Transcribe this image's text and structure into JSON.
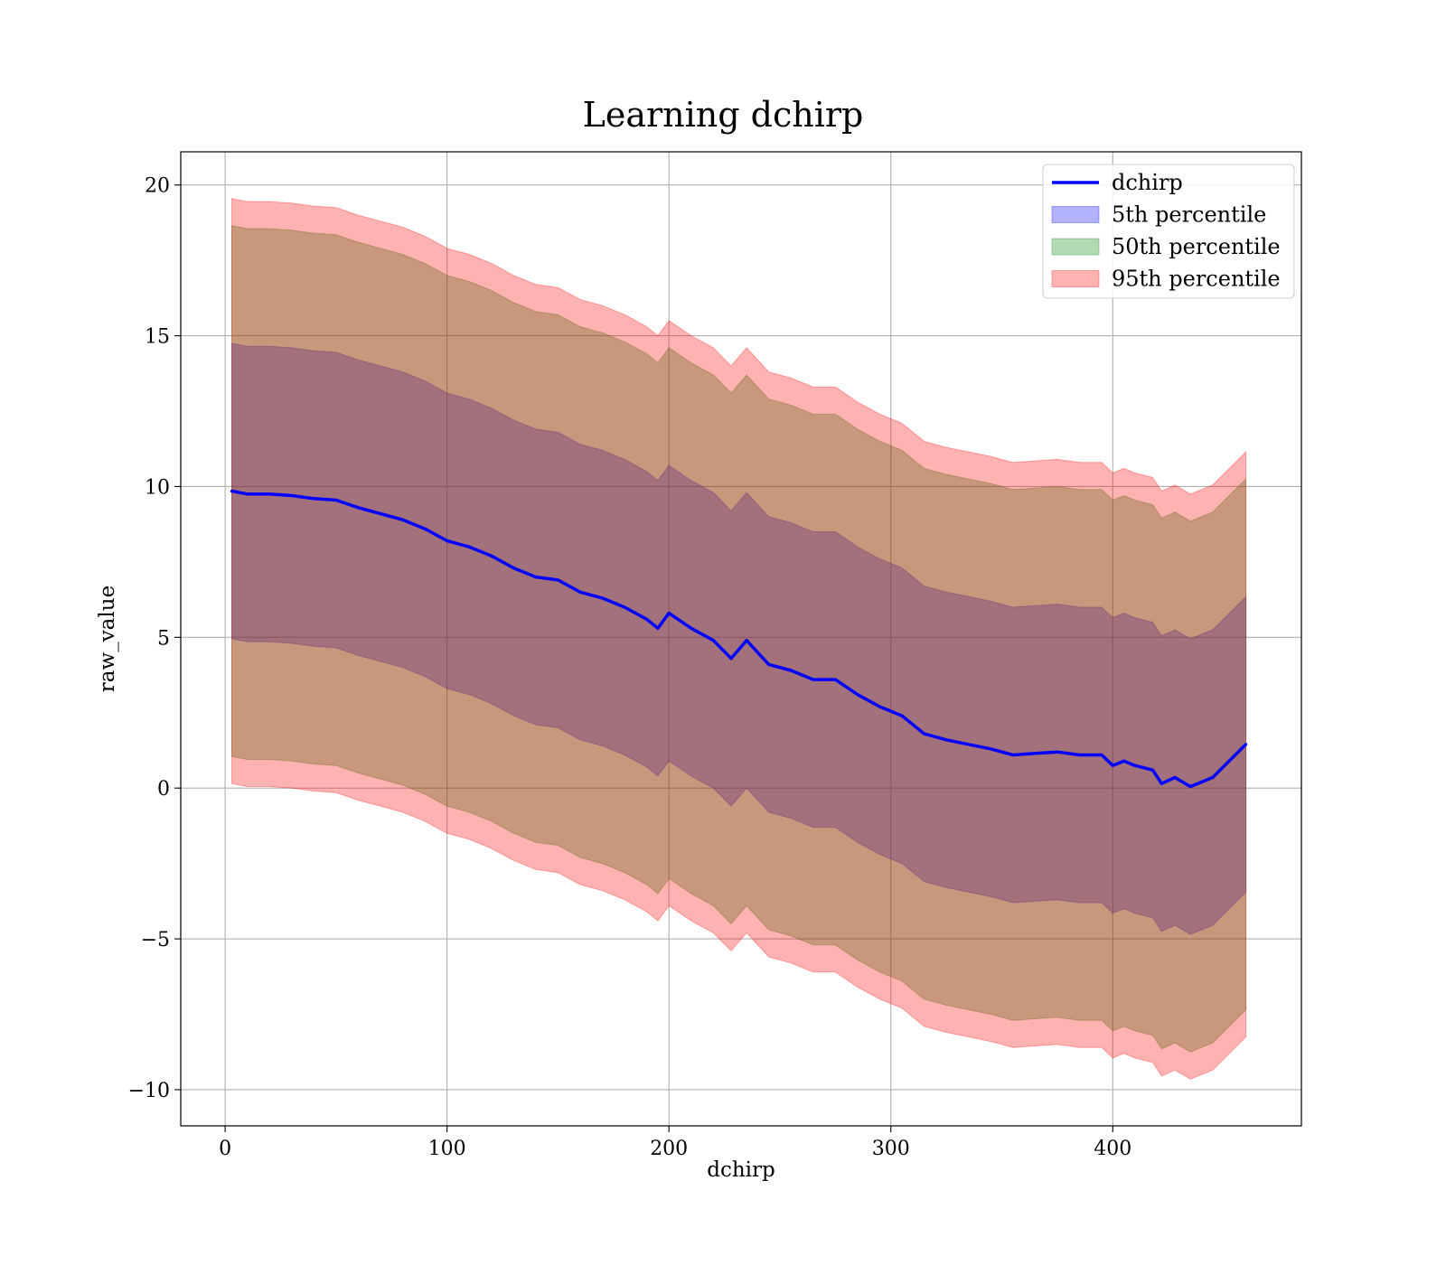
{
  "chart_data": {
    "type": "line",
    "title": "Learning dchirp",
    "xlabel": "dchirp",
    "ylabel": "raw_value",
    "xlim": [
      -20,
      485
    ],
    "ylim": [
      -11.2,
      21.1
    ],
    "x_ticks": [
      {
        "value": 0,
        "label": "0"
      },
      {
        "value": 100,
        "label": "100"
      },
      {
        "value": 200,
        "label": "200"
      },
      {
        "value": 300,
        "label": "300"
      },
      {
        "value": 400,
        "label": "400"
      }
    ],
    "y_ticks": [
      {
        "value": -10,
        "label": "−10"
      },
      {
        "value": -5,
        "label": "−5"
      },
      {
        "value": 0,
        "label": "0"
      },
      {
        "value": 5,
        "label": "5"
      },
      {
        "value": 10,
        "label": "10"
      },
      {
        "value": 15,
        "label": "15"
      },
      {
        "value": 20,
        "label": "20"
      }
    ],
    "grid": true,
    "legend_position": "top-right",
    "x": [
      3,
      10,
      20,
      30,
      40,
      50,
      60,
      70,
      80,
      90,
      100,
      110,
      120,
      130,
      140,
      150,
      160,
      170,
      180,
      190,
      195,
      200,
      210,
      220,
      228,
      235,
      245,
      255,
      265,
      275,
      285,
      295,
      305,
      315,
      325,
      335,
      345,
      355,
      365,
      375,
      385,
      395,
      400,
      405,
      410,
      418,
      422,
      428,
      435,
      445,
      460
    ],
    "series": [
      {
        "name": "dchirp",
        "kind": "line",
        "color": "#0000ff",
        "values": [
          9.85,
          9.75,
          9.75,
          9.7,
          9.6,
          9.55,
          9.3,
          9.1,
          8.9,
          8.6,
          8.2,
          8.0,
          7.7,
          7.3,
          7.0,
          6.9,
          6.5,
          6.3,
          6.0,
          5.6,
          5.3,
          5.8,
          5.3,
          4.9,
          4.3,
          4.9,
          4.1,
          3.9,
          3.6,
          3.6,
          3.1,
          2.7,
          2.4,
          1.8,
          1.6,
          1.45,
          1.3,
          1.1,
          1.15,
          1.2,
          1.1,
          1.1,
          0.75,
          0.9,
          0.75,
          0.6,
          0.15,
          0.35,
          0.05,
          0.35,
          1.45
        ]
      },
      {
        "name": "5th percentile",
        "kind": "band",
        "color": "#0000ff",
        "lower": [
          4.95,
          4.85,
          4.85,
          4.8,
          4.7,
          4.65,
          4.4,
          4.2,
          4.0,
          3.7,
          3.3,
          3.1,
          2.8,
          2.4,
          2.1,
          2.0,
          1.6,
          1.4,
          1.1,
          0.7,
          0.4,
          0.9,
          0.4,
          0.0,
          -0.6,
          0.0,
          -0.8,
          -1.0,
          -1.3,
          -1.3,
          -1.8,
          -2.2,
          -2.5,
          -3.1,
          -3.3,
          -3.45,
          -3.6,
          -3.8,
          -3.75,
          -3.7,
          -3.8,
          -3.8,
          -4.15,
          -4.0,
          -4.15,
          -4.3,
          -4.75,
          -4.55,
          -4.85,
          -4.55,
          -3.45
        ],
        "upper": [
          14.75,
          14.65,
          14.65,
          14.6,
          14.5,
          14.45,
          14.2,
          14.0,
          13.8,
          13.5,
          13.1,
          12.9,
          12.6,
          12.2,
          11.9,
          11.8,
          11.4,
          11.2,
          10.9,
          10.5,
          10.2,
          10.7,
          10.2,
          9.8,
          9.2,
          9.8,
          9.0,
          8.8,
          8.5,
          8.5,
          8.0,
          7.6,
          7.3,
          6.7,
          6.5,
          6.35,
          6.2,
          6.0,
          6.05,
          6.1,
          6.0,
          6.0,
          5.65,
          5.8,
          5.65,
          5.5,
          5.05,
          5.25,
          4.95,
          5.25,
          6.35
        ]
      },
      {
        "name": "50th percentile",
        "kind": "band",
        "color": "#008000",
        "lower": [
          1.05,
          0.95,
          0.95,
          0.9,
          0.8,
          0.75,
          0.5,
          0.3,
          0.1,
          -0.2,
          -0.6,
          -0.8,
          -1.1,
          -1.5,
          -1.8,
          -1.9,
          -2.3,
          -2.5,
          -2.8,
          -3.2,
          -3.5,
          -3.0,
          -3.5,
          -3.9,
          -4.5,
          -3.9,
          -4.7,
          -4.9,
          -5.2,
          -5.2,
          -5.7,
          -6.1,
          -6.4,
          -7.0,
          -7.2,
          -7.35,
          -7.5,
          -7.7,
          -7.65,
          -7.6,
          -7.7,
          -7.7,
          -8.05,
          -7.9,
          -8.05,
          -8.2,
          -8.65,
          -8.45,
          -8.75,
          -8.45,
          -7.35
        ],
        "upper": [
          18.65,
          18.55,
          18.55,
          18.5,
          18.4,
          18.35,
          18.1,
          17.9,
          17.7,
          17.4,
          17.0,
          16.8,
          16.5,
          16.1,
          15.8,
          15.7,
          15.3,
          15.1,
          14.8,
          14.4,
          14.1,
          14.6,
          14.1,
          13.7,
          13.1,
          13.7,
          12.9,
          12.7,
          12.4,
          12.4,
          11.9,
          11.5,
          11.2,
          10.6,
          10.4,
          10.25,
          10.1,
          9.9,
          9.95,
          10.0,
          9.9,
          9.9,
          9.55,
          9.7,
          9.55,
          9.4,
          8.95,
          9.15,
          8.85,
          9.15,
          10.25
        ]
      },
      {
        "name": "95th percentile",
        "kind": "band",
        "color": "#ff0000",
        "lower": [
          0.15,
          0.05,
          0.05,
          0.0,
          -0.1,
          -0.15,
          -0.4,
          -0.6,
          -0.8,
          -1.1,
          -1.5,
          -1.7,
          -2.0,
          -2.4,
          -2.7,
          -2.8,
          -3.2,
          -3.4,
          -3.7,
          -4.1,
          -4.4,
          -3.9,
          -4.4,
          -4.8,
          -5.4,
          -4.8,
          -5.6,
          -5.8,
          -6.1,
          -6.1,
          -6.6,
          -7.0,
          -7.3,
          -7.9,
          -8.1,
          -8.25,
          -8.4,
          -8.6,
          -8.55,
          -8.5,
          -8.6,
          -8.6,
          -8.95,
          -8.8,
          -8.95,
          -9.1,
          -9.55,
          -9.35,
          -9.65,
          -9.35,
          -8.25
        ],
        "upper": [
          19.55,
          19.45,
          19.45,
          19.4,
          19.3,
          19.25,
          19.0,
          18.8,
          18.6,
          18.3,
          17.9,
          17.7,
          17.4,
          17.0,
          16.7,
          16.6,
          16.2,
          16.0,
          15.7,
          15.3,
          15.0,
          15.5,
          15.0,
          14.6,
          14.0,
          14.6,
          13.8,
          13.6,
          13.3,
          13.3,
          12.8,
          12.4,
          12.1,
          11.5,
          11.3,
          11.15,
          11.0,
          10.8,
          10.85,
          10.9,
          10.8,
          10.8,
          10.45,
          10.6,
          10.45,
          10.3,
          9.85,
          10.05,
          9.75,
          10.05,
          11.15
        ]
      }
    ]
  }
}
